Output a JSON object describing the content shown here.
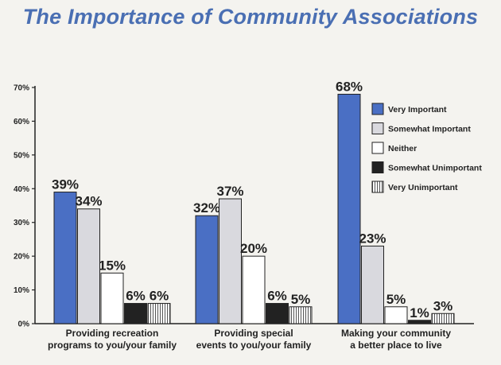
{
  "chart_data": {
    "type": "bar",
    "title": "The Importance of Community Associations",
    "xlabel": "",
    "ylabel": "",
    "ylim": [
      0,
      70
    ],
    "yticks": [
      "0%",
      "10%",
      "20%",
      "30%",
      "40%",
      "50%",
      "60%",
      "70%"
    ],
    "categories": [
      [
        "Providing recreation",
        "programs to you/your family"
      ],
      [
        "Providing special",
        "events to you/your family"
      ],
      [
        "Making your community",
        "a better place to live"
      ]
    ],
    "series": [
      {
        "name": "Very Important",
        "values": [
          39,
          32,
          68
        ],
        "labels": [
          "39%",
          "32%",
          "68%"
        ],
        "color": "#4a6fc4"
      },
      {
        "name": "Somewhat Important",
        "values": [
          34,
          37,
          23
        ],
        "labels": [
          "34%",
          "37%",
          "23%"
        ],
        "color": "#d9d9de"
      },
      {
        "name": "Neither",
        "values": [
          15,
          20,
          5
        ],
        "labels": [
          "15%",
          "20%",
          "5%"
        ],
        "color": "#ffffff"
      },
      {
        "name": "Somewhat Unimportant",
        "values": [
          6,
          6,
          1
        ],
        "labels": [
          "6%",
          "6%",
          "1%"
        ],
        "color": "#222222"
      },
      {
        "name": "Very Unimportant",
        "values": [
          6,
          5,
          3
        ],
        "labels": [
          "6%",
          "5%",
          "3%"
        ],
        "color": "#ffffff",
        "pattern": "vertical-lines"
      }
    ],
    "legend_position": "top-right",
    "grid": false
  }
}
